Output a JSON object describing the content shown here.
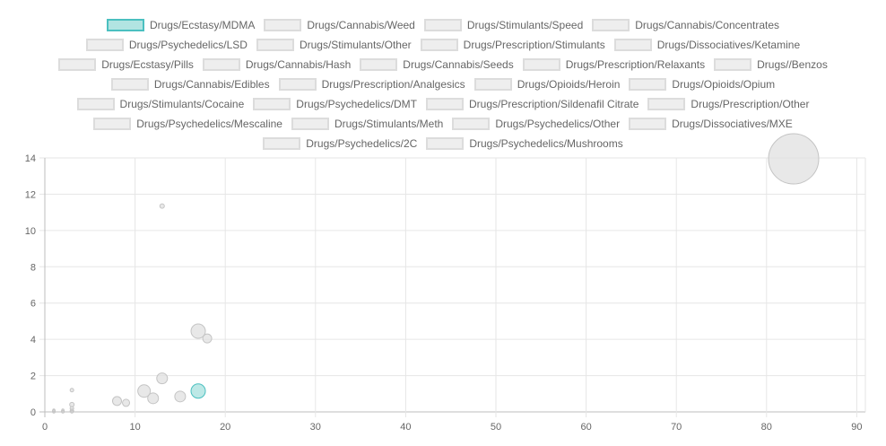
{
  "chart_data": {
    "type": "bubble",
    "xlim": [
      0,
      90
    ],
    "ylim": [
      0,
      14
    ],
    "xticks": [
      "0",
      "10",
      "20",
      "30",
      "40",
      "50",
      "60",
      "70",
      "80",
      "90"
    ],
    "yticks": [
      "0",
      "2",
      "4",
      "6",
      "8",
      "10",
      "12",
      "14"
    ],
    "grid": true,
    "legend_position": "top",
    "colors": {
      "highlight_fill": "#b2e4e2",
      "highlight_border": "#4bc0c0",
      "muted_fill": "#e0e0e0",
      "muted_border": "#c4c4c4"
    },
    "series": [
      {
        "name": "Drugs/Ecstasy/MDMA",
        "highlighted": true,
        "points": [
          {
            "x": 17,
            "y": 1.15,
            "r": 8
          }
        ]
      },
      {
        "name": "Drugs/Cannabis/Weed",
        "points": [
          {
            "x": 17,
            "y": 4.45,
            "r": 8
          }
        ]
      },
      {
        "name": "Drugs/Stimulants/Speed",
        "points": [
          {
            "x": 18,
            "y": 4.05,
            "r": 5
          }
        ]
      },
      {
        "name": "Drugs/Cannabis/Concentrates",
        "points": [
          {
            "x": 83,
            "y": 13.95,
            "r": 28
          }
        ]
      },
      {
        "name": "Drugs/Psychedelics/LSD",
        "points": [
          {
            "x": 11,
            "y": 1.15,
            "r": 7
          }
        ]
      },
      {
        "name": "Drugs/Stimulants/Other",
        "points": [
          {
            "x": 13,
            "y": 11.35,
            "r": 2.5
          }
        ]
      },
      {
        "name": "Drugs/Prescription/Stimulants",
        "points": [
          {
            "x": 13,
            "y": 1.85,
            "r": 6
          }
        ]
      },
      {
        "name": "Drugs/Dissociatives/Ketamine",
        "points": [
          {
            "x": 15,
            "y": 0.85,
            "r": 6
          }
        ]
      },
      {
        "name": "Drugs/Ecstasy/Pills",
        "points": [
          {
            "x": 12,
            "y": 0.75,
            "r": 6
          }
        ]
      },
      {
        "name": "Drugs/Cannabis/Hash",
        "points": [
          {
            "x": 8,
            "y": 0.6,
            "r": 5
          }
        ]
      },
      {
        "name": "Drugs/Cannabis/Seeds",
        "points": [
          {
            "x": 9,
            "y": 0.5,
            "r": 4
          }
        ]
      },
      {
        "name": "Drugs/Prescription/Relaxants",
        "points": [
          {
            "x": 3,
            "y": 1.2,
            "r": 2
          }
        ]
      },
      {
        "name": "Drugs//Benzos",
        "points": [
          {
            "x": 3,
            "y": 0.4,
            "r": 2.5
          }
        ]
      },
      {
        "name": "Drugs/Cannabis/Edibles",
        "points": [
          {
            "x": 3,
            "y": 0.2,
            "r": 2
          }
        ]
      },
      {
        "name": "Drugs/Prescription/Analgesics",
        "points": [
          {
            "x": 3,
            "y": 0.05,
            "r": 2
          }
        ]
      },
      {
        "name": "Drugs/Opioids/Heroin",
        "points": [
          {
            "x": 2,
            "y": 0.05,
            "r": 1.5
          }
        ]
      },
      {
        "name": "Drugs/Opioids/Opium",
        "points": [
          {
            "x": 1,
            "y": 0.05,
            "r": 1.5
          }
        ]
      },
      {
        "name": "Drugs/Stimulants/Cocaine",
        "points": [
          {
            "x": 1,
            "y": 0.02,
            "r": 1.5
          }
        ]
      },
      {
        "name": "Drugs/Psychedelics/DMT",
        "points": [
          {
            "x": 2,
            "y": 0.02,
            "r": 1.5
          }
        ]
      },
      {
        "name": "Drugs/Prescription/Sildenafil Citrate",
        "points": [
          {
            "x": 3,
            "y": 0.02,
            "r": 1.5
          }
        ]
      },
      {
        "name": "Drugs/Prescription/Other",
        "points": [
          {
            "x": 1,
            "y": 0.1,
            "r": 1.2
          }
        ]
      },
      {
        "name": "Drugs/Psychedelics/Mescaline",
        "points": [
          {
            "x": 2,
            "y": 0.1,
            "r": 1.2
          }
        ]
      },
      {
        "name": "Drugs/Stimulants/Meth",
        "points": [
          {
            "x": 1,
            "y": 0.0,
            "r": 1.2
          }
        ]
      },
      {
        "name": "Drugs/Psychedelics/Other",
        "points": [
          {
            "x": 2,
            "y": 0.0,
            "r": 1.2
          }
        ]
      },
      {
        "name": "Drugs/Dissociatives/MXE",
        "points": [
          {
            "x": 3,
            "y": 0.1,
            "r": 1.2
          }
        ]
      },
      {
        "name": "Drugs/Psychedelics/2C",
        "points": [
          {
            "x": 3,
            "y": 0.0,
            "r": 1.2
          }
        ]
      },
      {
        "name": "Drugs/Psychedelics/Mushrooms",
        "points": [
          {
            "x": 1,
            "y": 0.07,
            "r": 1.2
          }
        ]
      }
    ]
  }
}
